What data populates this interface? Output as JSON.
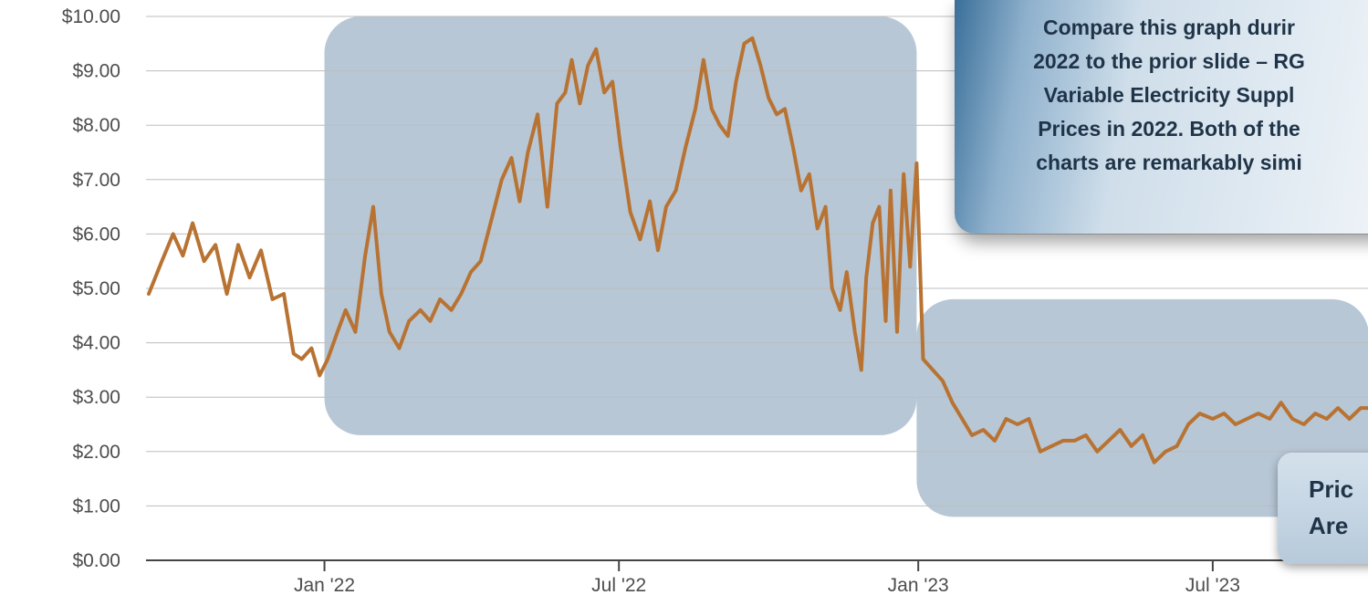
{
  "chart_data": {
    "type": "line",
    "title": "",
    "xlabel": "",
    "ylabel": "",
    "ylim": [
      0,
      10
    ],
    "y_ticks": [
      "$0.00",
      "$1.00",
      "$2.00",
      "$3.00",
      "$4.00",
      "$5.00",
      "$6.00",
      "$7.00",
      "$8.00",
      "$9.00",
      "$10.00"
    ],
    "x_ticks": [
      {
        "label": "Jan '22",
        "date": "2022-01-01"
      },
      {
        "label": "Jul '22",
        "date": "2022-07-01"
      },
      {
        "label": "Jan '23",
        "date": "2023-01-01"
      },
      {
        "label": "Jul '23",
        "date": "2023-07-01"
      }
    ],
    "x_range": [
      "2021-09-15",
      "2023-10-05"
    ],
    "grid": true,
    "line_color": "#b87333",
    "series": [
      {
        "points": [
          [
            "2021-09-15",
            4.9
          ],
          [
            "2021-09-23",
            5.5
          ],
          [
            "2021-09-30",
            6.0
          ],
          [
            "2021-10-06",
            5.6
          ],
          [
            "2021-10-12",
            6.2
          ],
          [
            "2021-10-19",
            5.5
          ],
          [
            "2021-10-26",
            5.8
          ],
          [
            "2021-11-02",
            4.9
          ],
          [
            "2021-11-09",
            5.8
          ],
          [
            "2021-11-16",
            5.2
          ],
          [
            "2021-11-23",
            5.7
          ],
          [
            "2021-11-30",
            4.8
          ],
          [
            "2021-12-07",
            4.9
          ],
          [
            "2021-12-13",
            3.8
          ],
          [
            "2021-12-18",
            3.7
          ],
          [
            "2021-12-24",
            3.9
          ],
          [
            "2021-12-29",
            3.4
          ],
          [
            "2022-01-03",
            3.7
          ],
          [
            "2022-01-09",
            4.2
          ],
          [
            "2022-01-14",
            4.6
          ],
          [
            "2022-01-20",
            4.2
          ],
          [
            "2022-01-26",
            5.6
          ],
          [
            "2022-01-31",
            6.5
          ],
          [
            "2022-02-05",
            4.9
          ],
          [
            "2022-02-10",
            4.2
          ],
          [
            "2022-02-16",
            3.9
          ],
          [
            "2022-02-22",
            4.4
          ],
          [
            "2022-03-01",
            4.6
          ],
          [
            "2022-03-07",
            4.4
          ],
          [
            "2022-03-13",
            4.8
          ],
          [
            "2022-03-20",
            4.6
          ],
          [
            "2022-03-26",
            4.9
          ],
          [
            "2022-04-01",
            5.3
          ],
          [
            "2022-04-07",
            5.5
          ],
          [
            "2022-04-14",
            6.3
          ],
          [
            "2022-04-20",
            7.0
          ],
          [
            "2022-04-26",
            7.4
          ],
          [
            "2022-05-01",
            6.6
          ],
          [
            "2022-05-06",
            7.5
          ],
          [
            "2022-05-12",
            8.2
          ],
          [
            "2022-05-18",
            6.5
          ],
          [
            "2022-05-24",
            8.4
          ],
          [
            "2022-05-29",
            8.6
          ],
          [
            "2022-06-02",
            9.2
          ],
          [
            "2022-06-07",
            8.4
          ],
          [
            "2022-06-12",
            9.1
          ],
          [
            "2022-06-17",
            9.4
          ],
          [
            "2022-06-22",
            8.6
          ],
          [
            "2022-06-27",
            8.8
          ],
          [
            "2022-07-02",
            7.6
          ],
          [
            "2022-07-08",
            6.4
          ],
          [
            "2022-07-14",
            5.9
          ],
          [
            "2022-07-20",
            6.6
          ],
          [
            "2022-07-25",
            5.7
          ],
          [
            "2022-07-30",
            6.5
          ],
          [
            "2022-08-05",
            6.8
          ],
          [
            "2022-08-11",
            7.6
          ],
          [
            "2022-08-17",
            8.3
          ],
          [
            "2022-08-22",
            9.2
          ],
          [
            "2022-08-27",
            8.3
          ],
          [
            "2022-09-01",
            8.0
          ],
          [
            "2022-09-06",
            7.8
          ],
          [
            "2022-09-11",
            8.8
          ],
          [
            "2022-09-16",
            9.5
          ],
          [
            "2022-09-21",
            9.6
          ],
          [
            "2022-09-26",
            9.1
          ],
          [
            "2022-10-01",
            8.5
          ],
          [
            "2022-10-06",
            8.2
          ],
          [
            "2022-10-11",
            8.3
          ],
          [
            "2022-10-16",
            7.6
          ],
          [
            "2022-10-21",
            6.8
          ],
          [
            "2022-10-26",
            7.1
          ],
          [
            "2022-10-31",
            6.1
          ],
          [
            "2022-11-05",
            6.5
          ],
          [
            "2022-11-09",
            5.0
          ],
          [
            "2022-11-14",
            4.6
          ],
          [
            "2022-11-18",
            5.3
          ],
          [
            "2022-11-23",
            4.2
          ],
          [
            "2022-11-27",
            3.5
          ],
          [
            "2022-11-30",
            5.2
          ],
          [
            "2022-12-04",
            6.2
          ],
          [
            "2022-12-08",
            6.5
          ],
          [
            "2022-12-12",
            4.4
          ],
          [
            "2022-12-15",
            6.8
          ],
          [
            "2022-12-19",
            4.2
          ],
          [
            "2022-12-23",
            7.1
          ],
          [
            "2022-12-27",
            5.4
          ],
          [
            "2022-12-31",
            7.3
          ],
          [
            "2023-01-04",
            3.7
          ],
          [
            "2023-01-10",
            3.5
          ],
          [
            "2023-01-16",
            3.3
          ],
          [
            "2023-01-22",
            2.9
          ],
          [
            "2023-01-28",
            2.6
          ],
          [
            "2023-02-03",
            2.3
          ],
          [
            "2023-02-10",
            2.4
          ],
          [
            "2023-02-17",
            2.2
          ],
          [
            "2023-02-24",
            2.6
          ],
          [
            "2023-03-03",
            2.5
          ],
          [
            "2023-03-10",
            2.6
          ],
          [
            "2023-03-17",
            2.0
          ],
          [
            "2023-03-24",
            2.1
          ],
          [
            "2023-03-31",
            2.2
          ],
          [
            "2023-04-07",
            2.2
          ],
          [
            "2023-04-14",
            2.3
          ],
          [
            "2023-04-21",
            2.0
          ],
          [
            "2023-04-28",
            2.2
          ],
          [
            "2023-05-05",
            2.4
          ],
          [
            "2023-05-12",
            2.1
          ],
          [
            "2023-05-19",
            2.3
          ],
          [
            "2023-05-26",
            1.8
          ],
          [
            "2023-06-02",
            2.0
          ],
          [
            "2023-06-09",
            2.1
          ],
          [
            "2023-06-16",
            2.5
          ],
          [
            "2023-06-23",
            2.7
          ],
          [
            "2023-07-01",
            2.6
          ],
          [
            "2023-07-08",
            2.7
          ],
          [
            "2023-07-15",
            2.5
          ],
          [
            "2023-07-22",
            2.6
          ],
          [
            "2023-07-29",
            2.7
          ],
          [
            "2023-08-05",
            2.6
          ],
          [
            "2023-08-12",
            2.9
          ],
          [
            "2023-08-19",
            2.6
          ],
          [
            "2023-08-26",
            2.5
          ],
          [
            "2023-09-02",
            2.7
          ],
          [
            "2023-09-09",
            2.6
          ],
          [
            "2023-09-16",
            2.8
          ],
          [
            "2023-09-23",
            2.6
          ],
          [
            "2023-09-30",
            2.8
          ],
          [
            "2023-10-05",
            2.8
          ]
        ]
      }
    ],
    "highlight_regions": [
      {
        "from": "2022-01-01",
        "to": "2022-12-31",
        "y_from": 2.3,
        "y_to": 10.0
      },
      {
        "from": "2022-12-31",
        "to": "2023-10-05",
        "y_from": 0.8,
        "y_to": 4.8
      }
    ],
    "highlight_color": "#54799b"
  },
  "callouts": {
    "top_lines": [
      "Compare this graph durir",
      "2022 to the prior slide – RG",
      "Variable Electricity Suppl",
      "Prices in 2022. Both of the",
      "charts are remarkably simi"
    ],
    "bottom_lines": [
      "Pric",
      "Are"
    ]
  }
}
